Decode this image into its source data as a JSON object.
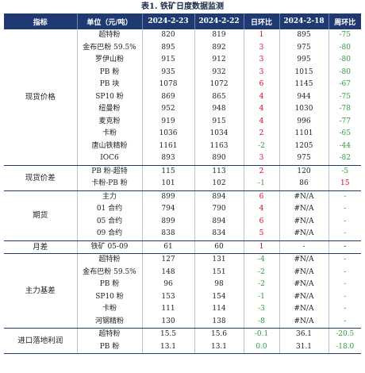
{
  "title": "表1. 铁矿日度数据监测",
  "headers": [
    "指标",
    "单位（元/吨）",
    "2024-2-23",
    "2024-2-22",
    "日环比",
    "2024-2-18",
    "周环比"
  ],
  "colors": {
    "header_bg": "#1f3a73",
    "up": "#d9001b",
    "down": "#2a9d3a"
  },
  "sections": [
    {
      "name": "现货价格",
      "rows": [
        {
          "item": "超特粉",
          "v1": "820",
          "v2": "819",
          "d": "1",
          "dc": "red",
          "v3": "895",
          "w": "-75",
          "wc": "green"
        },
        {
          "item": "金布巴粉 59.5%",
          "v1": "895",
          "v2": "892",
          "d": "3",
          "dc": "red",
          "v3": "975",
          "w": "-80",
          "wc": "green"
        },
        {
          "item": "罗伊山粉",
          "v1": "915",
          "v2": "912",
          "d": "3",
          "dc": "red",
          "v3": "995",
          "w": "-80",
          "wc": "green"
        },
        {
          "item": "PB 粉",
          "v1": "935",
          "v2": "932",
          "d": "3",
          "dc": "red",
          "v3": "1015",
          "w": "-80",
          "wc": "green"
        },
        {
          "item": "PB 块",
          "v1": "1078",
          "v2": "1072",
          "d": "6",
          "dc": "red",
          "v3": "1145",
          "w": "-67",
          "wc": "green"
        },
        {
          "item": "SP10 粉",
          "v1": "869",
          "v2": "865",
          "d": "4",
          "dc": "red",
          "v3": "944",
          "w": "-75",
          "wc": "green"
        },
        {
          "item": "纽曼粉",
          "v1": "952",
          "v2": "948",
          "d": "4",
          "dc": "red",
          "v3": "1030",
          "w": "-78",
          "wc": "green"
        },
        {
          "item": "麦克粉",
          "v1": "919",
          "v2": "915",
          "d": "4",
          "dc": "red",
          "v3": "996",
          "w": "-77",
          "wc": "green"
        },
        {
          "item": "卡粉",
          "v1": "1036",
          "v2": "1034",
          "d": "2",
          "dc": "red",
          "v3": "1101",
          "w": "-65",
          "wc": "green"
        },
        {
          "item": "唐山铁精粉",
          "v1": "1161",
          "v2": "1163",
          "d": "-2",
          "dc": "green",
          "v3": "1205",
          "w": "-44",
          "wc": "green"
        },
        {
          "item": "IOC6",
          "v1": "893",
          "v2": "890",
          "d": "3",
          "dc": "red",
          "v3": "975",
          "w": "-82",
          "wc": "green"
        }
      ]
    },
    {
      "name": "现货价差",
      "rows": [
        {
          "item": "PB 粉-超特",
          "v1": "115",
          "v2": "113",
          "d": "2",
          "dc": "red",
          "v3": "120",
          "w": "-5",
          "wc": "green"
        },
        {
          "item": "卡粉-PB 粉",
          "v1": "101",
          "v2": "102",
          "d": "-1",
          "dc": "green",
          "v3": "86",
          "w": "15",
          "wc": "red"
        }
      ]
    },
    {
      "name": "期货",
      "rows": [
        {
          "item": "主力",
          "v1": "899",
          "v2": "894",
          "d": "6",
          "dc": "red",
          "v3": "#N/A",
          "w": "-",
          "wc": "green"
        },
        {
          "item": "01 合约",
          "v1": "794",
          "v2": "790",
          "d": "4",
          "dc": "red",
          "v3": "#N/A",
          "w": "-",
          "wc": "green"
        },
        {
          "item": "05 合约",
          "v1": "899",
          "v2": "894",
          "d": "6",
          "dc": "red",
          "v3": "#N/A",
          "w": "-",
          "wc": "green"
        },
        {
          "item": "09 合约",
          "v1": "838",
          "v2": "834",
          "d": "5",
          "dc": "red",
          "v3": "#N/A",
          "w": "-",
          "wc": "green"
        }
      ]
    },
    {
      "name": "月差",
      "rows": [
        {
          "item": "铁矿 05-09",
          "v1": "61",
          "v2": "60",
          "d": "1",
          "dc": "red",
          "v3": "-",
          "w": "-",
          "wc": "dark"
        }
      ]
    },
    {
      "name": "主力基差",
      "rows": [
        {
          "item": "超特粉",
          "v1": "127",
          "v2": "131",
          "d": "-4",
          "dc": "green",
          "v3": "#N/A",
          "w": "-",
          "wc": "green"
        },
        {
          "item": "金布巴粉 59.5%",
          "v1": "148",
          "v2": "151",
          "d": "-2",
          "dc": "green",
          "v3": "#N/A",
          "w": "-",
          "wc": "green"
        },
        {
          "item": "PB 粉",
          "v1": "96",
          "v2": "98",
          "d": "-2",
          "dc": "green",
          "v3": "#N/A",
          "w": "-",
          "wc": "green"
        },
        {
          "item": "SP10 粉",
          "v1": "153",
          "v2": "154",
          "d": "-1",
          "dc": "green",
          "v3": "#N/A",
          "w": "-",
          "wc": "green"
        },
        {
          "item": "卡粉",
          "v1": "111",
          "v2": "114",
          "d": "-3",
          "dc": "green",
          "v3": "#N/A",
          "w": "-",
          "wc": "green"
        },
        {
          "item": "河钢精粉",
          "v1": "130",
          "v2": "138",
          "d": "-8",
          "dc": "green",
          "v3": "#N/A",
          "w": "-",
          "wc": "green"
        }
      ]
    },
    {
      "name": "进口落地利润",
      "rows": [
        {
          "item": "超特粉",
          "v1": "15.5",
          "v2": "15.6",
          "d": "-0.1",
          "dc": "green",
          "v3": "36.1",
          "w": "-20.5",
          "wc": "green"
        },
        {
          "item": "PB 粉",
          "v1": "13.1",
          "v2": "13.1",
          "d": "0.0",
          "dc": "green",
          "v3": "31.1",
          "w": "-18.0",
          "wc": "green"
        }
      ]
    }
  ]
}
